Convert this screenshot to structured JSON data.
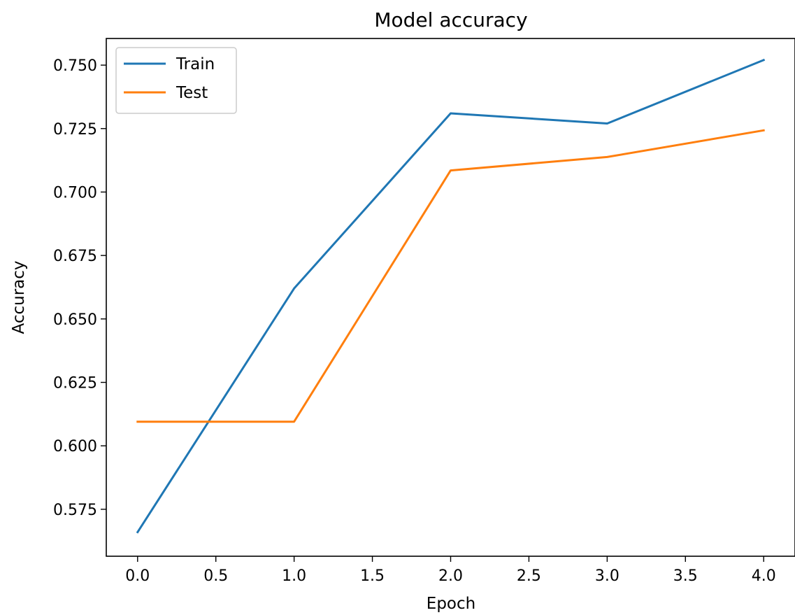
{
  "chart_data": {
    "type": "line",
    "title": "Model accuracy",
    "xlabel": "Epoch",
    "ylabel": "Accuracy",
    "x": [
      0,
      1,
      2,
      3,
      4
    ],
    "xlim": [
      -0.2,
      4.2
    ],
    "ylim": [
      0.5565,
      0.7605
    ],
    "xticks": [
      "0.0",
      "0.5",
      "1.0",
      "1.5",
      "2.0",
      "2.5",
      "3.0",
      "3.5",
      "4.0"
    ],
    "yticks": [
      "0.575",
      "0.600",
      "0.625",
      "0.650",
      "0.675",
      "0.700",
      "0.725",
      "0.750"
    ],
    "grid": false,
    "legend_position": "upper-left",
    "series": [
      {
        "name": "Train",
        "color": "#1f77b4",
        "values": [
          0.566,
          0.662,
          0.731,
          0.727,
          0.752
        ]
      },
      {
        "name": "Test",
        "color": "#ff7f0e",
        "values": [
          0.6095,
          0.6095,
          0.7085,
          0.7138,
          0.7243
        ]
      }
    ]
  }
}
